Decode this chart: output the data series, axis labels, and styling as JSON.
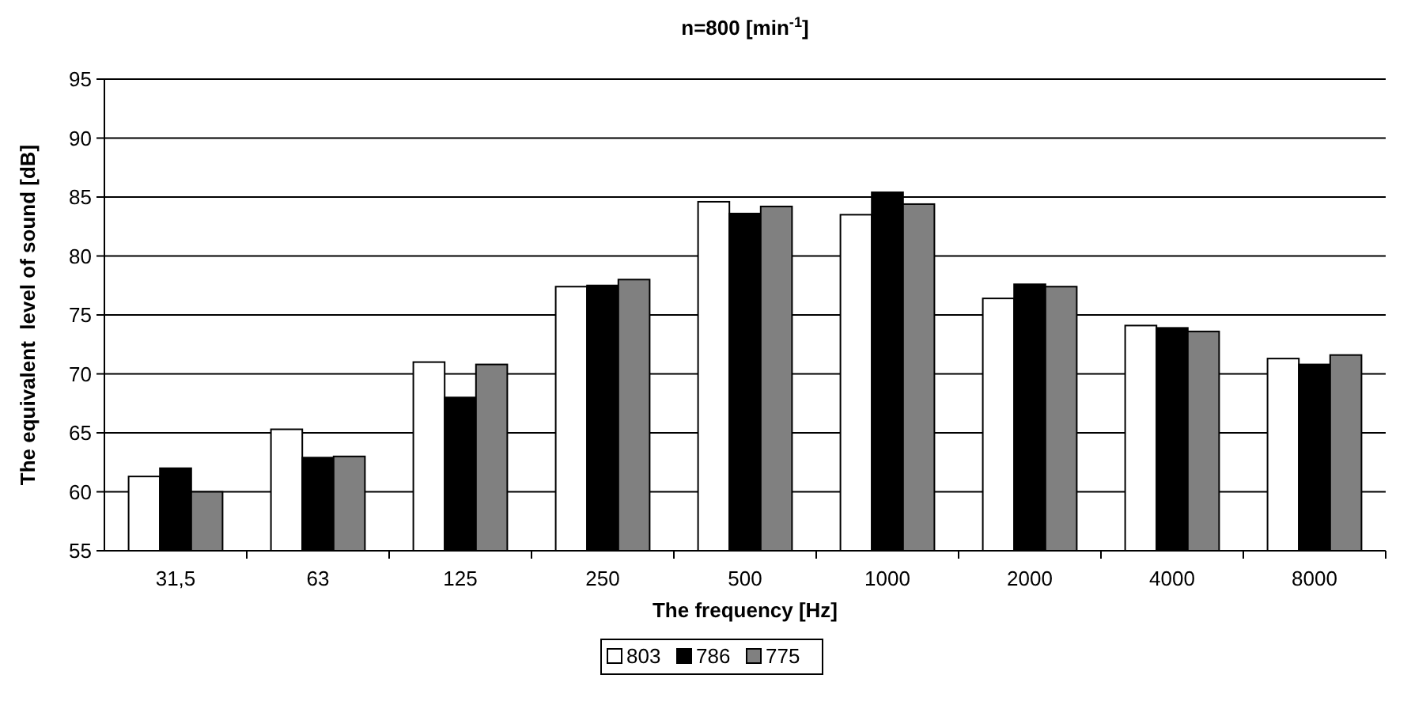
{
  "chart_data": {
    "type": "bar",
    "title": "n=800 [min$^{-1}$]",
    "xlabel": "The frequency [Hz]",
    "ylabel": "The equivalent  level of sound [dB]",
    "categories": [
      "31,5",
      "63",
      "125",
      "250",
      "500",
      "1000",
      "2000",
      "4000",
      "8000"
    ],
    "series": [
      {
        "name": "803",
        "color": "#ffffff",
        "values": [
          61.3,
          65.3,
          71.0,
          77.4,
          84.6,
          83.5,
          76.4,
          74.1,
          71.3
        ]
      },
      {
        "name": "786",
        "color": "#000000",
        "values": [
          62.0,
          62.9,
          68.0,
          77.5,
          83.6,
          85.4,
          77.6,
          73.9,
          70.8
        ]
      },
      {
        "name": "775",
        "color": "#808080",
        "values": [
          60.0,
          63.0,
          70.8,
          78.0,
          84.2,
          84.4,
          77.4,
          73.6,
          71.6
        ]
      }
    ],
    "ylim": [
      55,
      95
    ],
    "yticks": [
      55,
      60,
      65,
      70,
      75,
      80,
      85,
      90,
      95
    ],
    "grid": "y",
    "legend": "bottom"
  }
}
